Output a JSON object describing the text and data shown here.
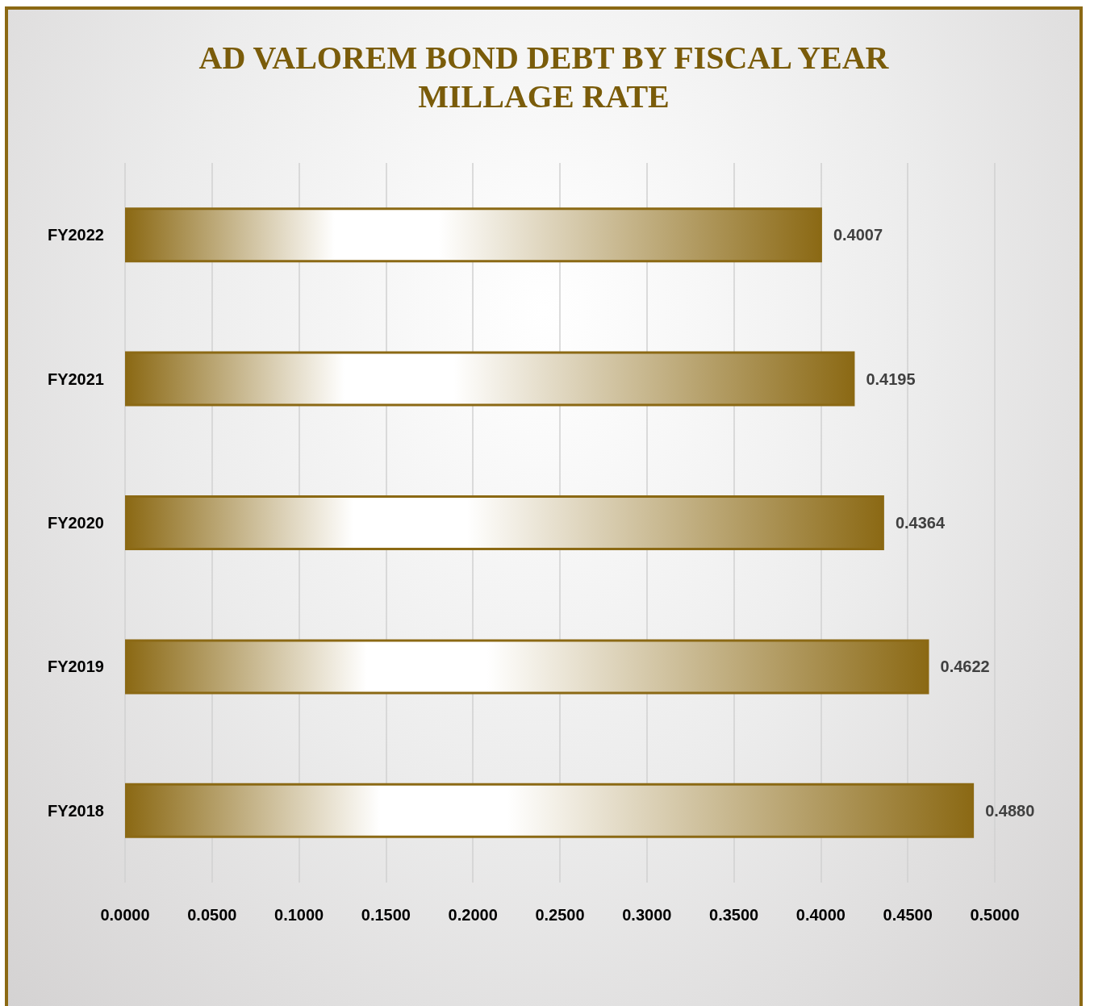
{
  "chart_data": {
    "type": "bar",
    "orientation": "horizontal",
    "title": "AD VALOREM BOND DEBT BY FISCAL YEAR\nMILLAGE RATE",
    "categories": [
      "FY2022",
      "FY2021",
      "FY2020",
      "FY2019",
      "FY2018"
    ],
    "values": [
      0.4007,
      0.4195,
      0.4364,
      0.4622,
      0.488
    ],
    "value_labels": [
      "0.4007",
      "0.4195",
      "0.4364",
      "0.4622",
      "0.4880"
    ],
    "color": "#8b6914",
    "xlim": [
      0,
      0.5
    ],
    "xticks": [
      {
        "value": 0,
        "label": "0.0000"
      },
      {
        "value": 0.05,
        "label": "0.0500"
      },
      {
        "value": 0.1,
        "label": "0.1000"
      },
      {
        "value": 0.15,
        "label": "0.1500"
      },
      {
        "value": 0.2,
        "label": "0.2000"
      },
      {
        "value": 0.25,
        "label": "0.2500"
      },
      {
        "value": 0.3,
        "label": "0.3000"
      },
      {
        "value": 0.35,
        "label": "0.3500"
      },
      {
        "value": 0.4,
        "label": "0.4000"
      },
      {
        "value": 0.45,
        "label": "0.4500"
      },
      {
        "value": 0.5,
        "label": "0.5000"
      }
    ],
    "grid": "x"
  }
}
